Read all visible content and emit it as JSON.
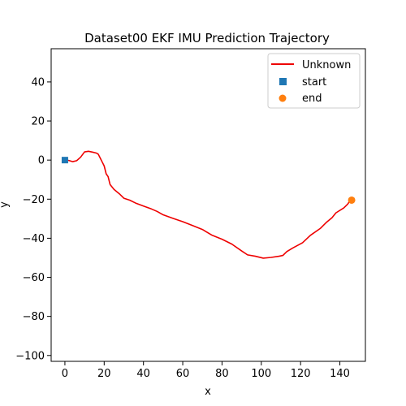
{
  "chart_data": {
    "type": "line",
    "title": "Dataset00 EKF IMU Prediction Trajectory",
    "xlabel": "x",
    "ylabel": "y",
    "xlim": [
      -7,
      153
    ],
    "ylim": [
      -103,
      57
    ],
    "xticks": [
      0,
      20,
      40,
      60,
      80,
      100,
      120,
      140
    ],
    "yticks": [
      -100,
      -80,
      -60,
      -40,
      -20,
      0,
      20,
      40
    ],
    "grid": false,
    "legend_position": "top-right",
    "series": [
      {
        "name": "Unknown",
        "color": "#ee0000",
        "points": [
          [
            0,
            0
          ],
          [
            2,
            -0.2
          ],
          [
            4,
            -0.8
          ],
          [
            6,
            -0.3
          ],
          [
            8,
            1.5
          ],
          [
            10,
            4.2
          ],
          [
            12,
            4.5
          ],
          [
            14,
            4.1
          ],
          [
            16,
            3.6
          ],
          [
            17,
            3.0
          ],
          [
            18,
            1.0
          ],
          [
            19,
            -1.0
          ],
          [
            20,
            -3.0
          ],
          [
            21,
            -7.0
          ],
          [
            22,
            -8.5
          ],
          [
            23,
            -12.5
          ],
          [
            25,
            -15.0
          ],
          [
            28,
            -17.5
          ],
          [
            30,
            -19.5
          ],
          [
            33,
            -20.5
          ],
          [
            36,
            -22.0
          ],
          [
            40,
            -23.5
          ],
          [
            44,
            -25.0
          ],
          [
            47,
            -26.3
          ],
          [
            50,
            -28.0
          ],
          [
            55,
            -29.8
          ],
          [
            60,
            -31.5
          ],
          [
            65,
            -33.5
          ],
          [
            70,
            -35.5
          ],
          [
            75,
            -38.5
          ],
          [
            80,
            -40.5
          ],
          [
            85,
            -43.0
          ],
          [
            90,
            -46.5
          ],
          [
            93,
            -48.5
          ],
          [
            97,
            -49.2
          ],
          [
            101,
            -50.2
          ],
          [
            105,
            -49.8
          ],
          [
            109,
            -49.2
          ],
          [
            111,
            -48.8
          ],
          [
            113,
            -46.8
          ],
          [
            116,
            -45.0
          ],
          [
            121,
            -42.3
          ],
          [
            125,
            -38.5
          ],
          [
            130,
            -35.0
          ],
          [
            133,
            -32.0
          ],
          [
            136,
            -29.5
          ],
          [
            138,
            -27.0
          ],
          [
            142,
            -24.5
          ],
          [
            144,
            -22.5
          ],
          [
            145,
            -21.0
          ]
        ]
      }
    ],
    "markers": [
      {
        "name": "start",
        "shape": "square",
        "color": "#1f77b4",
        "x": 0,
        "y": 0
      },
      {
        "name": "end",
        "shape": "circle",
        "color": "#ff7f0e",
        "x": 146,
        "y": -20.5
      }
    ]
  }
}
